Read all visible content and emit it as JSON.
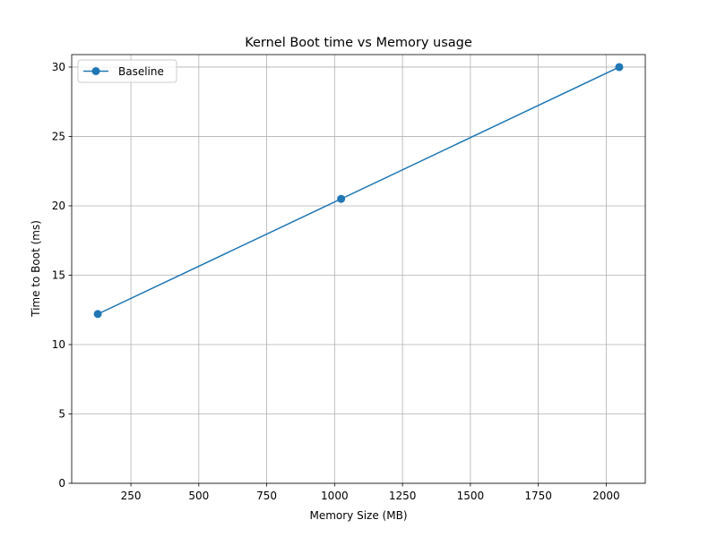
{
  "chart_data": {
    "type": "line",
    "title": "Kernel Boot time vs Memory usage",
    "xlabel": "Memory Size (MB)",
    "ylabel": "Time to Boot (ms)",
    "xlim": [
      32,
      2144
    ],
    "ylim": [
      0,
      30.9
    ],
    "xticks": [
      250,
      500,
      750,
      1000,
      1250,
      1500,
      1750,
      2000
    ],
    "yticks": [
      0,
      5,
      10,
      15,
      20,
      25,
      30
    ],
    "grid": true,
    "legend_position": "top-left",
    "series": [
      {
        "name": "Baseline",
        "color": "#1f77b4",
        "marker": "circle",
        "x": [
          128,
          1024,
          2048
        ],
        "y": [
          12.2,
          20.5,
          30.0
        ]
      }
    ]
  }
}
